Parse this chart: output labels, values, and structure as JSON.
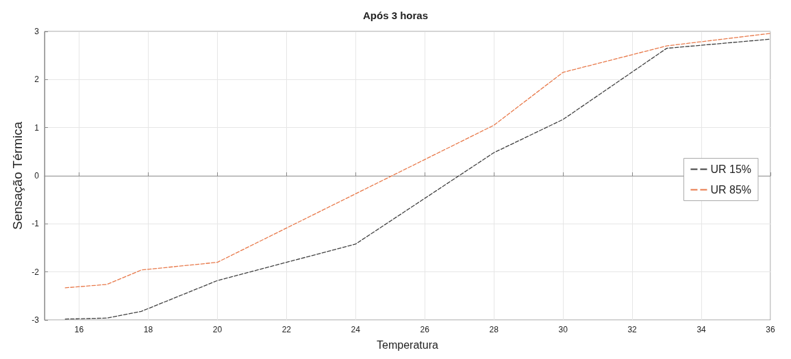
{
  "chart_data": {
    "type": "line",
    "title": "Após 3 horas",
    "xlabel": "Temperatura",
    "ylabel": "Sensação Térmica",
    "xlim": [
      15,
      36
    ],
    "xticks": [
      16,
      18,
      20,
      22,
      24,
      26,
      28,
      30,
      32,
      34,
      36
    ],
    "ylim": [
      -3,
      3
    ],
    "yticks": [
      -3,
      -2,
      -1,
      0,
      1,
      2,
      3
    ],
    "grid": true,
    "legend": "right",
    "line_style": "dashed",
    "marker": "none",
    "series": [
      {
        "name": "UR 15%",
        "color": "#404040",
        "x": [
          15.6,
          16.8,
          17.8,
          20,
          24,
          28,
          30,
          33,
          36
        ],
        "values": [
          -2.98,
          -2.96,
          -2.82,
          -2.18,
          -1.42,
          0.48,
          1.17,
          2.65,
          2.84
        ]
      },
      {
        "name": "UR 85%",
        "color": "#e8794a",
        "x": [
          15.6,
          16.8,
          17.8,
          20,
          28,
          30,
          33,
          36
        ],
        "values": [
          -2.33,
          -2.26,
          -1.96,
          -1.8,
          1.05,
          2.15,
          2.7,
          2.96
        ]
      }
    ]
  }
}
